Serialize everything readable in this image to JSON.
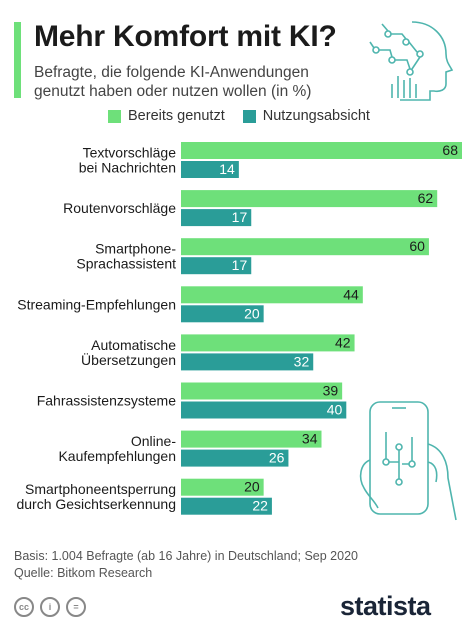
{
  "header": {
    "title": "Mehr Komfort mit KI?",
    "subtitle": "Befragte, die folgende KI-Anwendungen genutzt haben oder nutzen wollen (in %)"
  },
  "colors": {
    "accent": "#6ee07a",
    "series1": "#6ee07a",
    "series2": "#2a9d98",
    "icon": "#4fb5ae"
  },
  "chart_data": {
    "type": "bar",
    "orientation": "horizontal",
    "categories": [
      [
        "Textvorschläge",
        "bei Nachrichten"
      ],
      [
        "Routenvorschläge"
      ],
      [
        "Smartphone-",
        "Sprachassistent"
      ],
      [
        "Streaming-Empfehlungen"
      ],
      [
        "Automatische",
        "Übersetzungen"
      ],
      [
        "Fahrassistenzsysteme"
      ],
      [
        "Online-",
        "Kaufempfehlungen"
      ],
      [
        "Smartphoneentsperrung",
        "durch Gesichtserkennung"
      ]
    ],
    "series": [
      {
        "name": "Bereits genutzt",
        "color": "#6ee07a",
        "values": [
          68,
          62,
          60,
          44,
          42,
          39,
          34,
          20
        ]
      },
      {
        "name": "Nutzungsabsicht",
        "color": "#2a9d98",
        "values": [
          14,
          17,
          17,
          20,
          32,
          40,
          26,
          22
        ]
      }
    ],
    "xlim": [
      0,
      68
    ],
    "grid": false,
    "legend": "top"
  },
  "footer": {
    "basis": "Basis: 1.004 Befragte (ab 16 Jahre) in Deutschland; Sep 2020",
    "source": "Quelle: Bitkom Research",
    "logo": "statista"
  }
}
